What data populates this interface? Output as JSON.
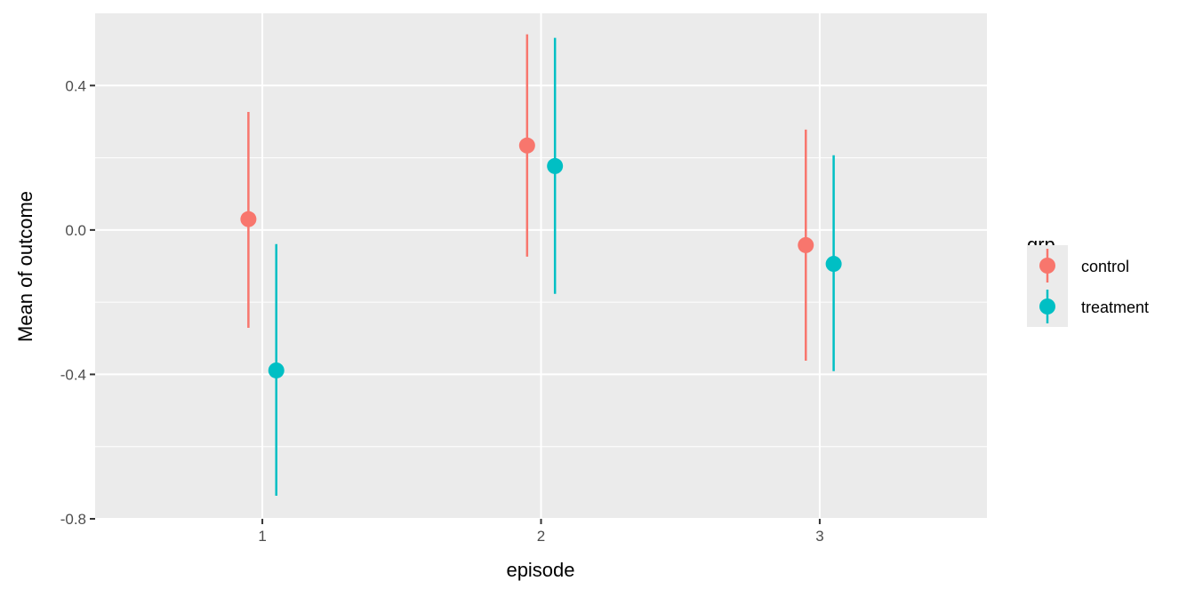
{
  "chart_data": {
    "type": "pointrange",
    "xlabel": "episode",
    "ylabel": "Mean of outcome",
    "categories": [
      "1",
      "2",
      "3"
    ],
    "ylim": [
      -0.8,
      0.6
    ],
    "yticks": [
      -0.8,
      -0.4,
      0.0,
      0.4
    ],
    "ytick_labels": [
      "-0.8",
      "-0.4",
      "0.0",
      "0.4"
    ],
    "grid": true,
    "legend": {
      "title": "grp",
      "position": "right"
    },
    "series": [
      {
        "name": "control",
        "color": "#F8766D",
        "mean": [
          0.03,
          0.234,
          -0.042
        ],
        "lower": [
          -0.271,
          -0.074,
          -0.362
        ],
        "upper": [
          0.327,
          0.542,
          0.278
        ]
      },
      {
        "name": "treatment",
        "color": "#00BFC4",
        "mean": [
          -0.389,
          0.177,
          -0.094
        ],
        "lower": [
          -0.736,
          -0.177,
          -0.391
        ],
        "upper": [
          -0.039,
          0.532,
          0.207
        ]
      }
    ]
  }
}
